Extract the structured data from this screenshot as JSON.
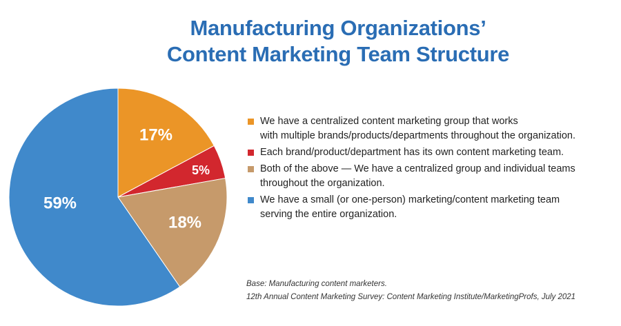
{
  "chart_data": {
    "type": "pie",
    "title": [
      "Manufacturing Organizations’",
      "Content Marketing Team Structure"
    ],
    "slices": [
      {
        "label": "We have a centralized content marketing group that works with multiple brands/products/departments throughout the organization.",
        "legend_lines": [
          "We have a centralized content marketing group that works",
          "with multiple brands/products/departments throughout the organization."
        ],
        "value": 17,
        "display": "17%",
        "color": "#eb9527"
      },
      {
        "label": "Each brand/product/department has its own content marketing team.",
        "legend_lines": [
          "Each brand/product/department has its own content marketing team."
        ],
        "value": 5,
        "display": "5%",
        "color": "#d2272e"
      },
      {
        "label": "Both of the above — We have a centralized group and individual teams throughout the organization.",
        "legend_lines": [
          "Both of the above — We have a centralized group and individual teams",
          "throughout the organization."
        ],
        "value": 18,
        "display": "18%",
        "color": "#c69a6b"
      },
      {
        "label": "We have a small (or one-person) marketing/content marketing team serving the entire organization.",
        "legend_lines": [
          "We have a small (or one-person) marketing/content marketing team",
          "serving the entire organization."
        ],
        "value": 59,
        "display": "59%",
        "color": "#4089cb"
      }
    ],
    "legend_position": "right"
  },
  "footnote": {
    "base": "Base: Manufacturing content marketers.",
    "source": "12th Annual Content Marketing Survey: Content Marketing Institute/MarketingProfs, July 2021"
  }
}
